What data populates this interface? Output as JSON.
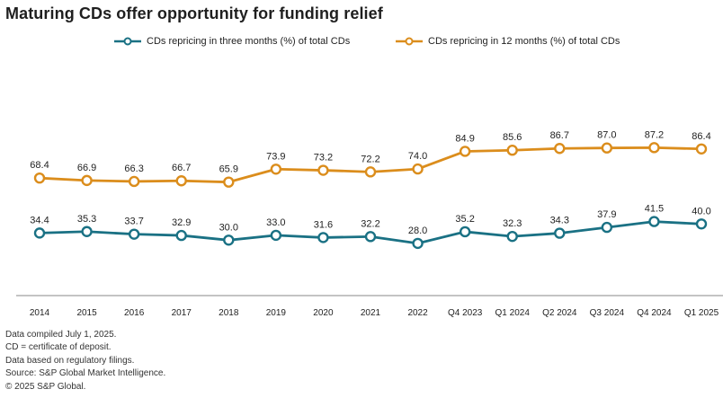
{
  "title": "Maturing CDs offer opportunity for funding relief",
  "colors": {
    "series_teal": "#1a7184",
    "series_orange": "#db8d1c",
    "axis": "#8a8a8a"
  },
  "chart_data": {
    "type": "line",
    "title": "Maturing CDs offer opportunity for funding relief",
    "xlabel": "",
    "ylabel": "",
    "ylim": [
      0,
      100
    ],
    "grid": false,
    "legend_position": "top",
    "categories": [
      "2014",
      "2015",
      "2016",
      "2017",
      "2018",
      "2019",
      "2020",
      "2021",
      "2022",
      "Q4 2023",
      "Q1 2024",
      "Q2 2024",
      "Q3 2024",
      "Q4 2024",
      "Q1 2025"
    ],
    "series": [
      {
        "name": "CDs repricing in three months (%) of total CDs",
        "values": [
          34.4,
          35.3,
          33.7,
          32.9,
          30.0,
          33.0,
          31.6,
          32.2,
          28.0,
          35.2,
          32.3,
          34.3,
          37.9,
          41.5,
          40.0
        ],
        "labels": [
          "34.4",
          "35.3",
          "33.7",
          "32.9",
          "30.0",
          "33.0",
          "31.6",
          "32.2",
          "28.0",
          "35.2",
          "32.3",
          "34.3",
          "37.9",
          "41.5",
          "40.0"
        ]
      },
      {
        "name": "CDs repricing in 12 months (%) of total CDs",
        "values": [
          68.4,
          66.9,
          66.3,
          66.7,
          65.9,
          73.9,
          73.2,
          72.2,
          74.0,
          84.9,
          85.6,
          86.7,
          87.0,
          87.2,
          86.4
        ],
        "labels": [
          "68.4",
          "66.9",
          "66.3",
          "66.7",
          "65.9",
          "73.9",
          "73.2",
          "72.2",
          "74.0",
          "84.9",
          "85.6",
          "86.7",
          "87.0",
          "87.2",
          "86.4"
        ]
      }
    ]
  },
  "footnotes": [
    "Data compiled July 1, 2025.",
    "CD = certificate of deposit.",
    "Data based on regulatory filings.",
    "Source: S&P Global Market Intelligence.",
    "© 2025 S&P Global."
  ]
}
